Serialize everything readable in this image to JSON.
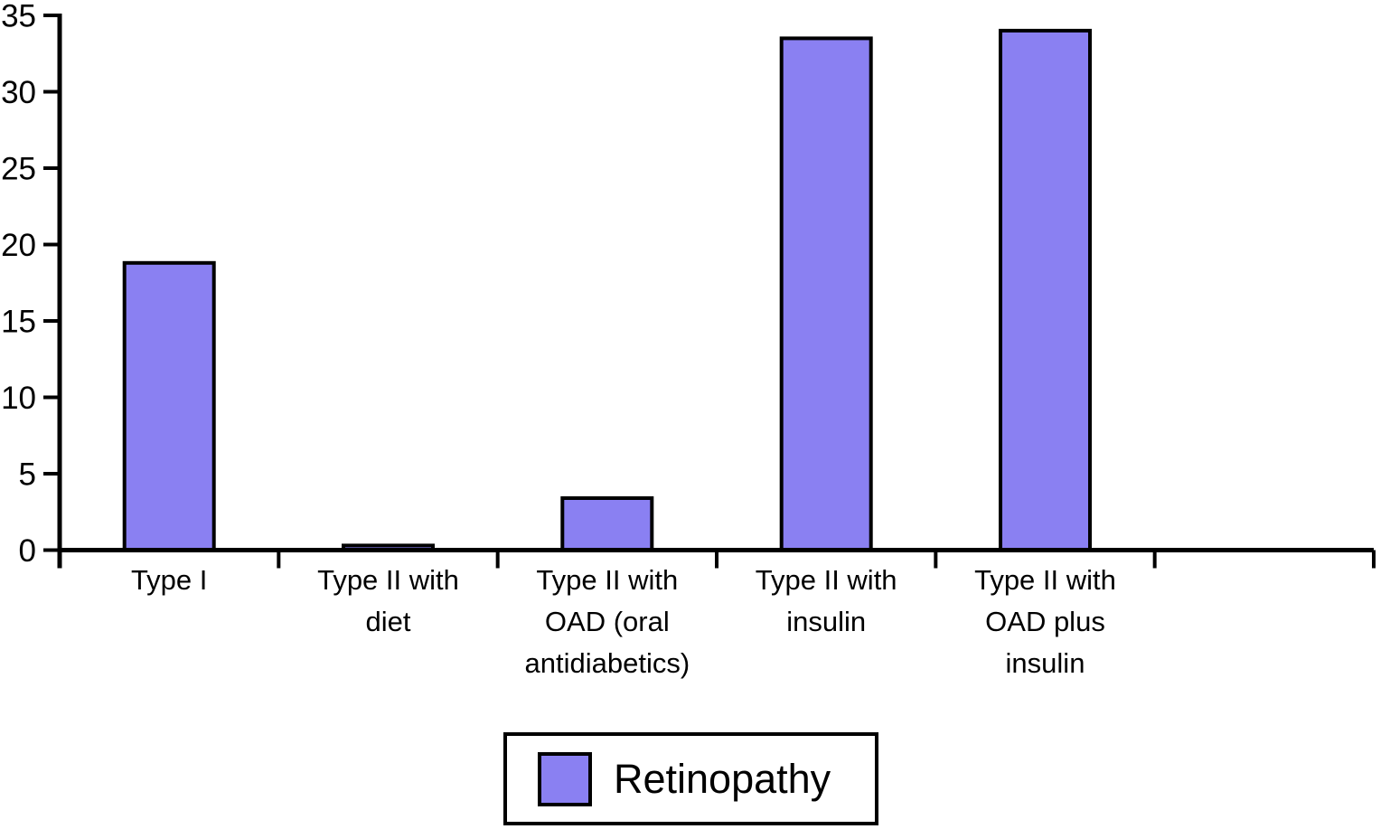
{
  "chart_data": {
    "type": "bar",
    "categories": [
      "Type I",
      "Type II with diet",
      "Type II with OAD (oral antidiabetics)",
      "Type II with insulin",
      "Type II with OAD plus insulin"
    ],
    "category_lines": [
      [
        "Type I"
      ],
      [
        "Type II with",
        "diet"
      ],
      [
        "Type II with",
        "OAD (oral",
        "antidiabetics)"
      ],
      [
        "Type II with",
        "insulin"
      ],
      [
        "Type II with",
        "OAD plus",
        "insulin"
      ]
    ],
    "series": [
      {
        "name": "Retinopathy",
        "values": [
          18.8,
          0.3,
          3.4,
          33.5,
          34.0
        ]
      }
    ],
    "ylim": [
      0,
      35
    ],
    "yticks": [
      0,
      5,
      10,
      15,
      20,
      25,
      30,
      35
    ],
    "grid": false,
    "legend_position": "bottom",
    "extra_right_slot": true,
    "bar_color": "#8A80F2",
    "bar_border_color": "#000000",
    "axis_color": "#000000"
  },
  "legend": {
    "label": "Retinopathy"
  }
}
